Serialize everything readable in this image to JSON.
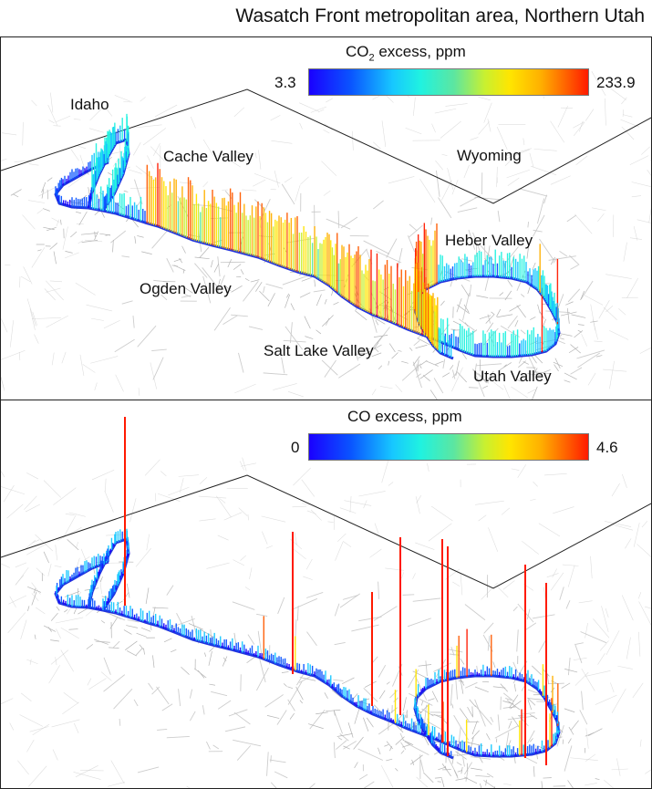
{
  "figure": {
    "title": "Wasatch Front metropolitan area, Northern Utah"
  },
  "panels": {
    "co2": {
      "colorbar_title_prefix": "CO",
      "colorbar_title_subscript": "2",
      "colorbar_title_suffix": " excess, ppm",
      "colorbar_min": "3.3",
      "colorbar_max": "233.9",
      "labels": {
        "idaho": "Idaho",
        "cache_valley": "Cache Valley",
        "wyoming": "Wyoming",
        "heber_valley": "Heber Valley",
        "ogden_valley": "Ogden Valley",
        "salt_lake_valley": "Salt Lake Valley",
        "utah_valley": "Utah Valley"
      }
    },
    "co": {
      "colorbar_title": "CO excess, ppm",
      "colorbar_min": "0",
      "colorbar_max": "4.6"
    }
  },
  "colors": {
    "colormap": [
      "#1a00ff",
      "#0a55ff",
      "#17c8ff",
      "#20f2e0",
      "#5de6a0",
      "#c9f030",
      "#ffe500",
      "#ffb000",
      "#ff5a00",
      "#ff1a00"
    ],
    "roads": "#c8c8c8",
    "route_base": "#2233dd"
  }
}
